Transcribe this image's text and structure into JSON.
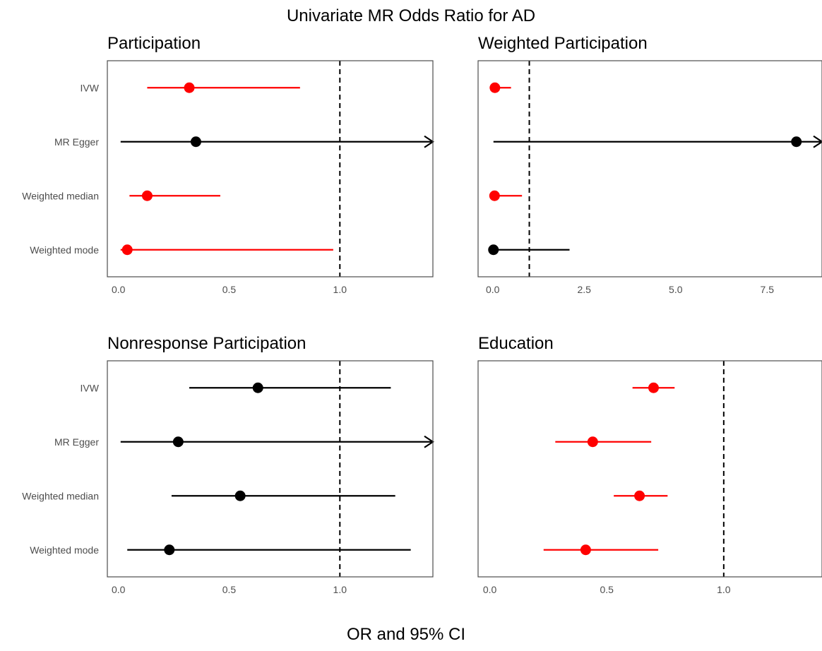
{
  "figure": {
    "title": "Univariate MR Odds Ratio for AD",
    "xlabel": "OR and 95% CI"
  },
  "colors": {
    "significant": "#ff0000",
    "non_significant": "#000000",
    "reference_line": "#000000",
    "panel_border": "#4d4d4d",
    "tick_label": "#4d4d4d"
  },
  "chart_data": [
    {
      "type": "forest",
      "title": "Participation",
      "categories": [
        "IVW",
        "MR Egger",
        "Weighted median",
        "Weighted mode"
      ],
      "xlim": [
        -0.05,
        1.42
      ],
      "xticks": [
        0.0,
        0.5,
        1.0
      ],
      "xtick_labels": [
        "0.0",
        "0.5",
        "1.0"
      ],
      "reference_line": 1.0,
      "estimates": [
        {
          "method": "IVW",
          "or": 0.32,
          "lower": 0.13,
          "upper": 0.82,
          "color": "#ff0000",
          "upper_arrow": false
        },
        {
          "method": "MR Egger",
          "or": 0.35,
          "lower": 0.01,
          "upper": 1.42,
          "color": "#000000",
          "upper_arrow": true
        },
        {
          "method": "Weighted median",
          "or": 0.13,
          "lower": 0.05,
          "upper": 0.46,
          "color": "#ff0000",
          "upper_arrow": false
        },
        {
          "method": "Weighted mode",
          "or": 0.04,
          "lower": 0.01,
          "upper": 0.97,
          "color": "#ff0000",
          "upper_arrow": false
        }
      ]
    },
    {
      "type": "forest",
      "title": "Weighted Participation",
      "categories": [
        "IVW",
        "MR Egger",
        "Weighted median",
        "Weighted mode"
      ],
      "xlim": [
        -0.4,
        9.0
      ],
      "xticks": [
        0.0,
        2.5,
        5.0,
        7.5
      ],
      "xtick_labels": [
        "0.0",
        "2.5",
        "5.0",
        "7.5"
      ],
      "reference_line": 1.0,
      "estimates": [
        {
          "method": "IVW",
          "or": 0.06,
          "lower": 0.02,
          "upper": 0.5,
          "color": "#ff0000",
          "upper_arrow": false
        },
        {
          "method": "MR Egger",
          "or": 8.3,
          "lower": 0.02,
          "upper": 9.0,
          "color": "#000000",
          "upper_arrow": true
        },
        {
          "method": "Weighted median",
          "or": 0.05,
          "lower": 0.02,
          "upper": 0.8,
          "color": "#ff0000",
          "upper_arrow": false
        },
        {
          "method": "Weighted mode",
          "or": 0.02,
          "lower": 0.01,
          "upper": 2.1,
          "color": "#000000",
          "upper_arrow": false
        }
      ]
    },
    {
      "type": "forest",
      "title": "Nonresponse Participation",
      "categories": [
        "IVW",
        "MR Egger",
        "Weighted median",
        "Weighted mode"
      ],
      "xlim": [
        -0.05,
        1.42
      ],
      "xticks": [
        0.0,
        0.5,
        1.0
      ],
      "xtick_labels": [
        "0.0",
        "0.5",
        "1.0"
      ],
      "reference_line": 1.0,
      "estimates": [
        {
          "method": "IVW",
          "or": 0.63,
          "lower": 0.32,
          "upper": 1.23,
          "color": "#000000",
          "upper_arrow": false
        },
        {
          "method": "MR Egger",
          "or": 0.27,
          "lower": 0.01,
          "upper": 1.42,
          "color": "#000000",
          "upper_arrow": true
        },
        {
          "method": "Weighted median",
          "or": 0.55,
          "lower": 0.24,
          "upper": 1.25,
          "color": "#000000",
          "upper_arrow": false
        },
        {
          "method": "Weighted mode",
          "or": 0.23,
          "lower": 0.04,
          "upper": 1.32,
          "color": "#000000",
          "upper_arrow": false
        }
      ]
    },
    {
      "type": "forest",
      "title": "Education",
      "categories": [
        "IVW",
        "MR Egger",
        "Weighted median",
        "Weighted mode"
      ],
      "xlim": [
        -0.05,
        1.42
      ],
      "xticks": [
        0.0,
        0.5,
        1.0
      ],
      "xtick_labels": [
        "0.0",
        "0.5",
        "1.0"
      ],
      "reference_line": 1.0,
      "estimates": [
        {
          "method": "IVW",
          "or": 0.7,
          "lower": 0.61,
          "upper": 0.79,
          "color": "#ff0000",
          "upper_arrow": false
        },
        {
          "method": "MR Egger",
          "or": 0.44,
          "lower": 0.28,
          "upper": 0.69,
          "color": "#ff0000",
          "upper_arrow": false
        },
        {
          "method": "Weighted median",
          "or": 0.64,
          "lower": 0.53,
          "upper": 0.76,
          "color": "#ff0000",
          "upper_arrow": false
        },
        {
          "method": "Weighted mode",
          "or": 0.41,
          "lower": 0.23,
          "upper": 0.72,
          "color": "#ff0000",
          "upper_arrow": false
        }
      ]
    }
  ]
}
